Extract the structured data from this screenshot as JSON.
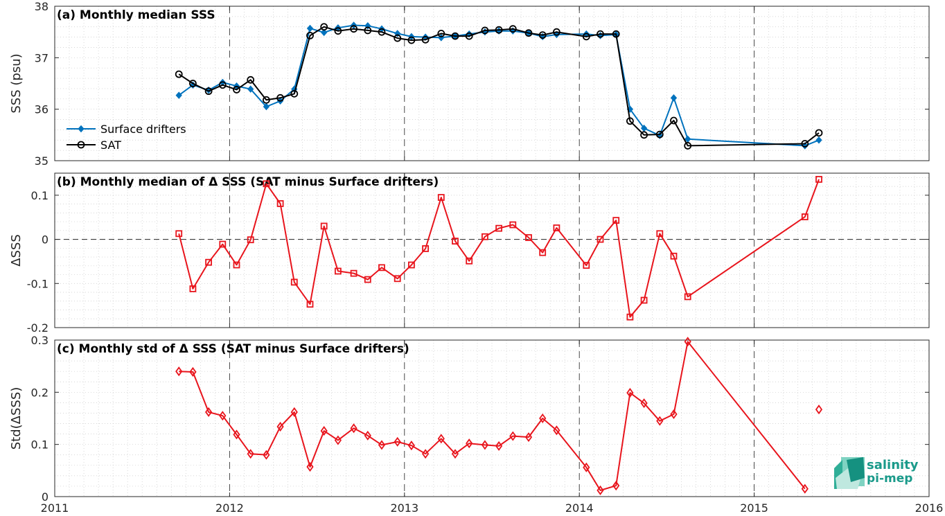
{
  "chart_data": [
    {
      "type": "line",
      "title": "(a) Monthly median SSS",
      "ylabel": "SSS (psu)",
      "xlim": [
        2011,
        2016
      ],
      "ylim": [
        35,
        38
      ],
      "yticks": [
        35,
        36,
        37,
        38
      ],
      "series": [
        {
          "name": "Surface drifters",
          "color": "#0072BD",
          "marker": "diamond",
          "points": [
            [
              2011.71,
              36.27
            ],
            [
              2011.79,
              36.47
            ],
            [
              2011.88,
              36.37
            ],
            [
              2011.96,
              36.52
            ],
            [
              2012.04,
              36.45
            ],
            [
              2012.12,
              36.39
            ],
            [
              2012.21,
              36.05
            ],
            [
              2012.29,
              36.16
            ],
            [
              2012.37,
              36.39
            ],
            [
              2012.46,
              37.57
            ],
            [
              2012.54,
              37.49
            ],
            [
              2012.62,
              37.58
            ],
            [
              2012.71,
              37.63
            ],
            [
              2012.79,
              37.62
            ],
            [
              2012.87,
              37.56
            ],
            [
              2012.96,
              37.47
            ],
            [
              2013.04,
              37.41
            ],
            [
              2013.12,
              37.4
            ],
            [
              2013.21,
              37.39
            ],
            [
              2013.29,
              37.42
            ],
            [
              2013.37,
              37.46
            ],
            [
              2013.46,
              37.5
            ],
            [
              2013.54,
              37.52
            ],
            [
              2013.62,
              37.52
            ],
            [
              2013.71,
              37.48
            ],
            [
              2013.79,
              37.41
            ],
            [
              2013.87,
              37.45
            ],
            [
              2014.04,
              37.46
            ],
            [
              2014.12,
              37.43
            ],
            [
              2014.21,
              37.45
            ],
            [
              2014.29,
              36.0
            ],
            [
              2014.37,
              35.63
            ],
            [
              2014.46,
              35.49
            ],
            [
              2014.54,
              36.22
            ],
            [
              2014.62,
              35.42
            ],
            [
              2015.29,
              35.29
            ],
            [
              2015.37,
              35.4
            ]
          ]
        },
        {
          "name": "SAT",
          "color": "#000000",
          "marker": "circle",
          "points": [
            [
              2011.71,
              36.68
            ],
            [
              2011.79,
              36.5
            ],
            [
              2011.88,
              36.35
            ],
            [
              2011.96,
              36.47
            ],
            [
              2012.04,
              36.38
            ],
            [
              2012.12,
              36.57
            ],
            [
              2012.21,
              36.18
            ],
            [
              2012.29,
              36.22
            ],
            [
              2012.37,
              36.3
            ],
            [
              2012.46,
              37.43
            ],
            [
              2012.54,
              37.6
            ],
            [
              2012.62,
              37.52
            ],
            [
              2012.71,
              37.56
            ],
            [
              2012.79,
              37.53
            ],
            [
              2012.87,
              37.5
            ],
            [
              2012.96,
              37.38
            ],
            [
              2013.04,
              37.34
            ],
            [
              2013.12,
              37.35
            ],
            [
              2013.21,
              37.47
            ],
            [
              2013.29,
              37.42
            ],
            [
              2013.37,
              37.42
            ],
            [
              2013.46,
              37.53
            ],
            [
              2013.54,
              37.54
            ],
            [
              2013.62,
              37.56
            ],
            [
              2013.71,
              37.48
            ],
            [
              2013.79,
              37.44
            ],
            [
              2013.87,
              37.5
            ],
            [
              2014.04,
              37.41
            ],
            [
              2014.12,
              37.46
            ],
            [
              2014.21,
              37.46
            ],
            [
              2014.29,
              35.77
            ],
            [
              2014.37,
              35.5
            ],
            [
              2014.46,
              35.51
            ],
            [
              2014.54,
              35.78
            ],
            [
              2014.62,
              35.29
            ],
            [
              2015.29,
              35.33
            ],
            [
              2015.37,
              35.54
            ]
          ]
        }
      ],
      "legend": "lower-left"
    },
    {
      "type": "line",
      "title": "(b) Monthly median of Δ SSS (SAT minus Surface drifters)",
      "ylabel": "ΔSSS",
      "xlim": [
        2011,
        2016
      ],
      "ylim": [
        -0.2,
        0.15
      ],
      "yticks": [
        -0.2,
        -0.1,
        0,
        0.1
      ],
      "ytick_labels": [
        "-0.2",
        "-0.1",
        "0",
        "0.1"
      ],
      "reference_line": 0,
      "series": [
        {
          "color": "#E8141C",
          "marker": "square",
          "points": [
            [
              2011.71,
              0.013
            ],
            [
              2011.79,
              -0.112
            ],
            [
              2011.88,
              -0.052
            ],
            [
              2011.96,
              -0.011
            ],
            [
              2012.04,
              -0.058
            ],
            [
              2012.12,
              -0.001
            ],
            [
              2012.21,
              0.126
            ],
            [
              2012.29,
              0.081
            ],
            [
              2012.37,
              -0.097
            ],
            [
              2012.46,
              -0.147
            ],
            [
              2012.54,
              0.03
            ],
            [
              2012.62,
              -0.072
            ],
            [
              2012.71,
              -0.077
            ],
            [
              2012.79,
              -0.091
            ],
            [
              2012.87,
              -0.064
            ],
            [
              2012.96,
              -0.089
            ],
            [
              2013.04,
              -0.058
            ],
            [
              2013.12,
              -0.021
            ],
            [
              2013.21,
              0.095
            ],
            [
              2013.29,
              -0.004
            ],
            [
              2013.37,
              -0.049
            ],
            [
              2013.46,
              0.006
            ],
            [
              2013.54,
              0.025
            ],
            [
              2013.62,
              0.033
            ],
            [
              2013.71,
              0.004
            ],
            [
              2013.79,
              -0.03
            ],
            [
              2013.87,
              0.026
            ],
            [
              2014.04,
              -0.059
            ],
            [
              2014.12,
              0.0
            ],
            [
              2014.21,
              0.043
            ],
            [
              2014.29,
              -0.176
            ],
            [
              2014.37,
              -0.138
            ],
            [
              2014.46,
              0.013
            ],
            [
              2014.54,
              -0.038
            ],
            [
              2014.62,
              -0.13
            ],
            [
              2015.29,
              0.051
            ],
            [
              2015.37,
              0.136
            ]
          ]
        }
      ]
    },
    {
      "type": "line",
      "title": "(c) Monthly std of Δ SSS (SAT minus Surface drifters)",
      "ylabel": "Std(ΔSSS)",
      "xlim": [
        2011,
        2016
      ],
      "ylim": [
        0,
        0.3
      ],
      "yticks": [
        0,
        0.1,
        0.2,
        0.3
      ],
      "ytick_labels": [
        "0",
        "0.1",
        "0.2",
        "0.3"
      ],
      "xticks": [
        2011,
        2012,
        2013,
        2014,
        2015,
        2016
      ],
      "series": [
        {
          "color": "#E8141C",
          "marker": "diamond-open",
          "segments": [
            [
              [
                2011.71,
                0.24
              ],
              [
                2011.79,
                0.239
              ],
              [
                2011.88,
                0.162
              ],
              [
                2011.96,
                0.155
              ],
              [
                2012.04,
                0.119
              ],
              [
                2012.12,
                0.082
              ],
              [
                2012.21,
                0.08
              ],
              [
                2012.29,
                0.134
              ],
              [
                2012.37,
                0.162
              ],
              [
                2012.46,
                0.057
              ],
              [
                2012.54,
                0.126
              ],
              [
                2012.62,
                0.108
              ],
              [
                2012.71,
                0.131
              ],
              [
                2012.79,
                0.117
              ],
              [
                2012.87,
                0.099
              ],
              [
                2012.96,
                0.105
              ],
              [
                2013.04,
                0.098
              ],
              [
                2013.12,
                0.082
              ],
              [
                2013.21,
                0.111
              ],
              [
                2013.29,
                0.082
              ],
              [
                2013.37,
                0.102
              ],
              [
                2013.46,
                0.099
              ],
              [
                2013.54,
                0.097
              ],
              [
                2013.62,
                0.116
              ],
              [
                2013.71,
                0.114
              ],
              [
                2013.79,
                0.15
              ],
              [
                2013.87,
                0.127
              ],
              [
                2014.04,
                0.056
              ],
              [
                2014.12,
                0.012
              ],
              [
                2014.21,
                0.021
              ],
              [
                2014.29,
                0.199
              ],
              [
                2014.37,
                0.179
              ],
              [
                2014.46,
                0.145
              ],
              [
                2014.54,
                0.158
              ],
              [
                2014.62,
                0.297
              ],
              [
                2015.29,
                0.015
              ]
            ],
            [
              [
                2015.37,
                0.167
              ]
            ]
          ]
        }
      ]
    }
  ],
  "logo": {
    "line1": "salinity",
    "line2": "pi-mep"
  }
}
